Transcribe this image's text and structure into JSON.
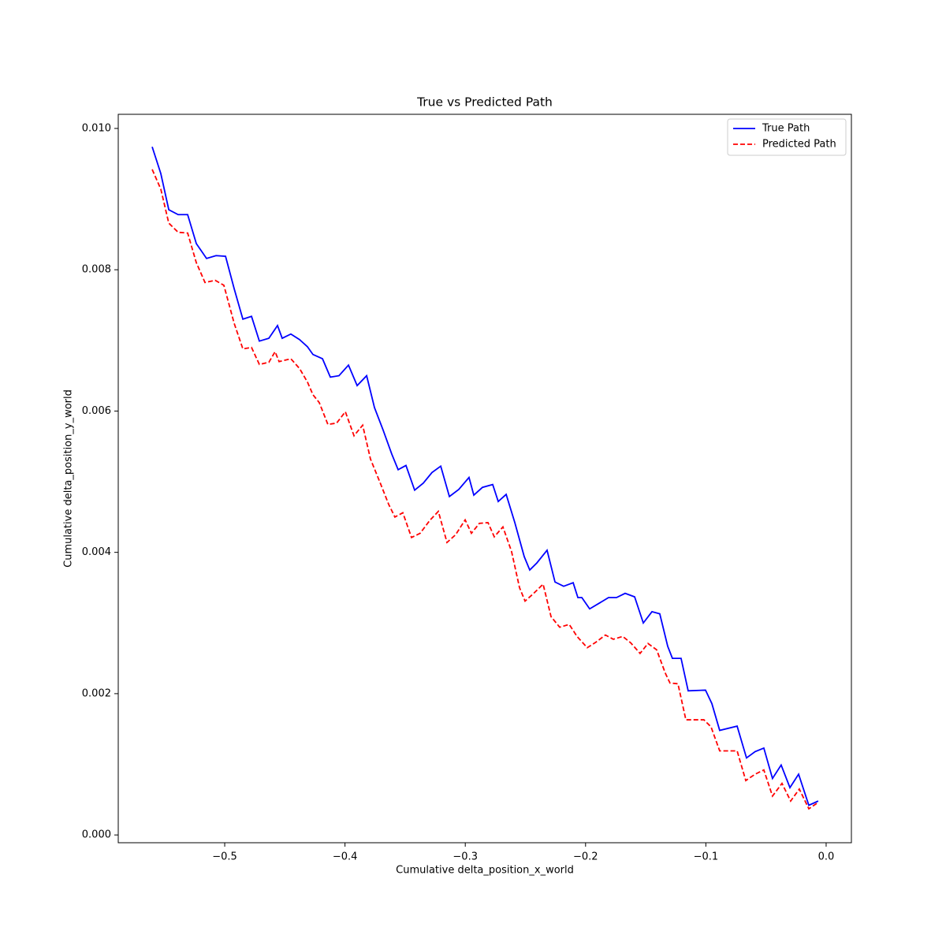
{
  "chart_data": {
    "type": "line",
    "title": "True vs Predicted Path",
    "x_label": "Cumulative delta_position_x_world",
    "y_label": "Cumulative delta_position_y_world",
    "xlim": [
      -0.5885,
      0.021
    ],
    "ylim": [
      -0.00011,
      0.0102
    ],
    "xticks": [
      {
        "value": -0.5,
        "label": "−0.5"
      },
      {
        "value": -0.4,
        "label": "−0.4"
      },
      {
        "value": -0.3,
        "label": "−0.3"
      },
      {
        "value": -0.2,
        "label": "−0.2"
      },
      {
        "value": -0.1,
        "label": "−0.1"
      },
      {
        "value": 0,
        "label": "0.0"
      }
    ],
    "yticks": [
      {
        "value": 0,
        "label": "0.000"
      },
      {
        "value": 0.002,
        "label": "0.002"
      },
      {
        "value": 0.004,
        "label": "0.004"
      },
      {
        "value": 0.006,
        "label": "0.006"
      },
      {
        "value": 0.008,
        "label": "0.008"
      },
      {
        "value": 0.01,
        "label": "0.010"
      }
    ],
    "legend": "upper right",
    "series": [
      {
        "name": "True Path",
        "color": "#0000ff",
        "dash": "solid",
        "x": [
          -0.5603,
          -0.5531,
          -0.5465,
          -0.5387,
          -0.5308,
          -0.5236,
          -0.5151,
          -0.5072,
          -0.4993,
          -0.4921,
          -0.4849,
          -0.4777,
          -0.4712,
          -0.4633,
          -0.4561,
          -0.4522,
          -0.445,
          -0.4377,
          -0.4312,
          -0.4266,
          -0.4187,
          -0.4122,
          -0.405,
          -0.3971,
          -0.3899,
          -0.382,
          -0.3755,
          -0.3683,
          -0.3611,
          -0.3558,
          -0.3493,
          -0.3421,
          -0.3349,
          -0.3277,
          -0.3204,
          -0.3132,
          -0.3054,
          -0.2969,
          -0.2929,
          -0.2857,
          -0.2772,
          -0.2726,
          -0.266,
          -0.2588,
          -0.251,
          -0.2464,
          -0.2405,
          -0.232,
          -0.2254,
          -0.2182,
          -0.2103,
          -0.2064,
          -0.2031,
          -0.1966,
          -0.1887,
          -0.1809,
          -0.1743,
          -0.1671,
          -0.1592,
          -0.152,
          -0.1448,
          -0.1383,
          -0.1317,
          -0.1278,
          -0.1206,
          -0.1147,
          -0.1003,
          -0.095,
          -0.0885,
          -0.074,
          -0.0662,
          -0.059,
          -0.0518,
          -0.0446,
          -0.0374,
          -0.0301,
          -0.0229,
          -0.0144,
          -0.0066
        ],
        "values": [
          0.00974,
          0.00936,
          0.00885,
          0.00878,
          0.00878,
          0.00837,
          0.00816,
          0.0082,
          0.00819,
          0.00773,
          0.0073,
          0.00734,
          0.00699,
          0.00703,
          0.00721,
          0.00703,
          0.00709,
          0.00701,
          0.00691,
          0.0068,
          0.00674,
          0.00648,
          0.0065,
          0.00665,
          0.00636,
          0.0065,
          0.00605,
          0.00573,
          0.00539,
          0.00517,
          0.00523,
          0.00488,
          0.00498,
          0.00513,
          0.00522,
          0.00479,
          0.00489,
          0.00506,
          0.00481,
          0.00492,
          0.00496,
          0.00472,
          0.00482,
          0.00442,
          0.00394,
          0.00375,
          0.00385,
          0.00403,
          0.00358,
          0.00352,
          0.00357,
          0.00336,
          0.00336,
          0.0032,
          0.00328,
          0.00336,
          0.00336,
          0.00342,
          0.00337,
          0.003,
          0.00316,
          0.00313,
          0.00267,
          0.0025,
          0.0025,
          0.00204,
          0.00205,
          0.00186,
          0.00148,
          0.00154,
          0.00109,
          0.00118,
          0.00123,
          0.0008,
          0.00099,
          0.00067,
          0.00086,
          0.00042,
          0.00048
        ]
      },
      {
        "name": "Predicted Path",
        "color": "#ff0000",
        "dash": "dashed",
        "x": [
          -0.5603,
          -0.5531,
          -0.5465,
          -0.5387,
          -0.5308,
          -0.5236,
          -0.5164,
          -0.5079,
          -0.5007,
          -0.4921,
          -0.4849,
          -0.4777,
          -0.4712,
          -0.4633,
          -0.4581,
          -0.4548,
          -0.445,
          -0.4377,
          -0.4312,
          -0.4266,
          -0.4214,
          -0.4142,
          -0.4069,
          -0.3997,
          -0.3925,
          -0.3853,
          -0.3788,
          -0.3709,
          -0.3637,
          -0.3585,
          -0.3519,
          -0.3447,
          -0.3375,
          -0.3296,
          -0.3224,
          -0.3152,
          -0.308,
          -0.3001,
          -0.2949,
          -0.2883,
          -0.2811,
          -0.2759,
          -0.2687,
          -0.2615,
          -0.2549,
          -0.2503,
          -0.2431,
          -0.2353,
          -0.2287,
          -0.2215,
          -0.2136,
          -0.2071,
          -0.1986,
          -0.1913,
          -0.1835,
          -0.1769,
          -0.1691,
          -0.1625,
          -0.1547,
          -0.1481,
          -0.1409,
          -0.1337,
          -0.1298,
          -0.1232,
          -0.1166,
          -0.1016,
          -0.0957,
          -0.0885,
          -0.074,
          -0.0668,
          -0.059,
          -0.0518,
          -0.0446,
          -0.0367,
          -0.0295,
          -0.0223,
          -0.0144,
          -0.0066
        ],
        "values": [
          0.00942,
          0.00914,
          0.00866,
          0.00853,
          0.00852,
          0.0081,
          0.00782,
          0.00785,
          0.00778,
          0.00724,
          0.00688,
          0.0069,
          0.00666,
          0.00669,
          0.00684,
          0.0067,
          0.00674,
          0.0066,
          0.00641,
          0.00623,
          0.00612,
          0.00581,
          0.00583,
          0.00599,
          0.00565,
          0.0058,
          0.00532,
          0.00499,
          0.00468,
          0.0045,
          0.00456,
          0.00421,
          0.00427,
          0.00445,
          0.00458,
          0.00414,
          0.00425,
          0.00446,
          0.00427,
          0.00441,
          0.00442,
          0.00422,
          0.00436,
          0.00401,
          0.0035,
          0.00331,
          0.00342,
          0.00355,
          0.00309,
          0.00294,
          0.00298,
          0.00281,
          0.00265,
          0.00273,
          0.00283,
          0.00277,
          0.00281,
          0.00272,
          0.00257,
          0.00271,
          0.00262,
          0.00229,
          0.00215,
          0.00214,
          0.00163,
          0.00163,
          0.00153,
          0.00119,
          0.00119,
          0.00077,
          0.00086,
          0.00092,
          0.00055,
          0.00073,
          0.00048,
          0.00065,
          0.00037,
          0.00046
        ]
      }
    ]
  }
}
